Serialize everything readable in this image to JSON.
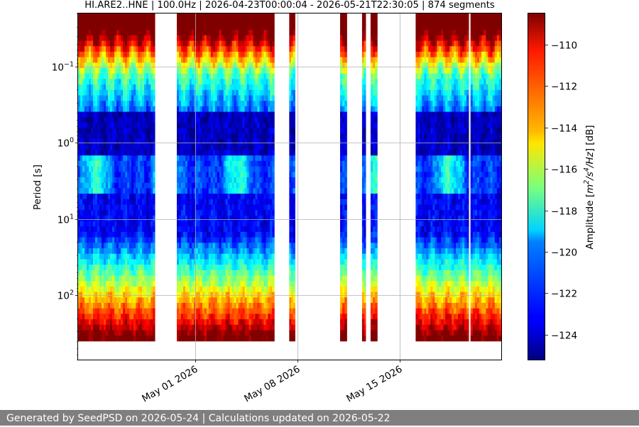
{
  "chart_data": {
    "type": "heatmap",
    "title": "HI.ARE2..HNE | 100.0Hz | 2026-04-23T00:00:04 - 2026-05-21T22:30:05 | 874 segments",
    "ylabel": "Period [s]",
    "y_scale": "log",
    "y_inverted": true,
    "ylim": [
      0.02,
      700
    ],
    "y_ticks": [
      {
        "value": 0.1,
        "base": "10",
        "exp": "−1"
      },
      {
        "value": 1,
        "base": "10",
        "exp": "0"
      },
      {
        "value": 10,
        "base": "10",
        "exp": "1"
      },
      {
        "value": 100,
        "base": "10",
        "exp": "2"
      }
    ],
    "xlim": [
      "2026-04-23T00:00:04",
      "2026-05-21T22:30:05"
    ],
    "x_ticks": [
      {
        "value": "2026-05-01",
        "label": "May 01 2026"
      },
      {
        "value": "2026-05-08",
        "label": "May 08 2026"
      },
      {
        "value": "2026-05-15",
        "label": "May 15 2026"
      }
    ],
    "data_segments": [
      [
        "2026-04-23T00:00:04",
        "2026-04-28T06:00:00"
      ],
      [
        "2026-04-29T18:00:00",
        "2026-05-06T10:00:00"
      ],
      [
        "2026-05-07T10:30:00",
        "2026-05-07T20:00:00"
      ],
      [
        "2026-05-10T22:00:00",
        "2026-05-11T09:00:00"
      ],
      [
        "2026-05-12T10:00:00",
        "2026-05-12T16:00:00"
      ],
      [
        "2026-05-13T00:00:00",
        "2026-05-13T11:00:00"
      ],
      [
        "2026-05-16T02:00:00",
        "2026-05-19T17:00:00"
      ],
      [
        "2026-05-19T20:00:00",
        "2026-05-21T22:30:05"
      ]
    ],
    "colorbar": {
      "label": "Amplitude [m²/s⁴/Hz] [dB]",
      "label_prefix": "Amplitude [",
      "label_unit": "m",
      "label_exp1": "2",
      "label_slash": "/s",
      "label_exp2": "4",
      "label_hz": "/Hz",
      "label_suffix": "] [dB]",
      "colormap": "jet",
      "range": [
        -125.2,
        -108.5
      ],
      "ticks": [
        -110,
        -112,
        -114,
        -116,
        -118,
        -120,
        -122,
        -124
      ],
      "tick_labels": [
        "−110",
        "−112",
        "−114",
        "−116",
        "−118",
        "−120",
        "−122",
        "−124"
      ]
    },
    "grid": true
  },
  "footer": {
    "text": "Generated by SeedPSD on 2026-05-24 | Calculations updated on 2026-05-22"
  }
}
